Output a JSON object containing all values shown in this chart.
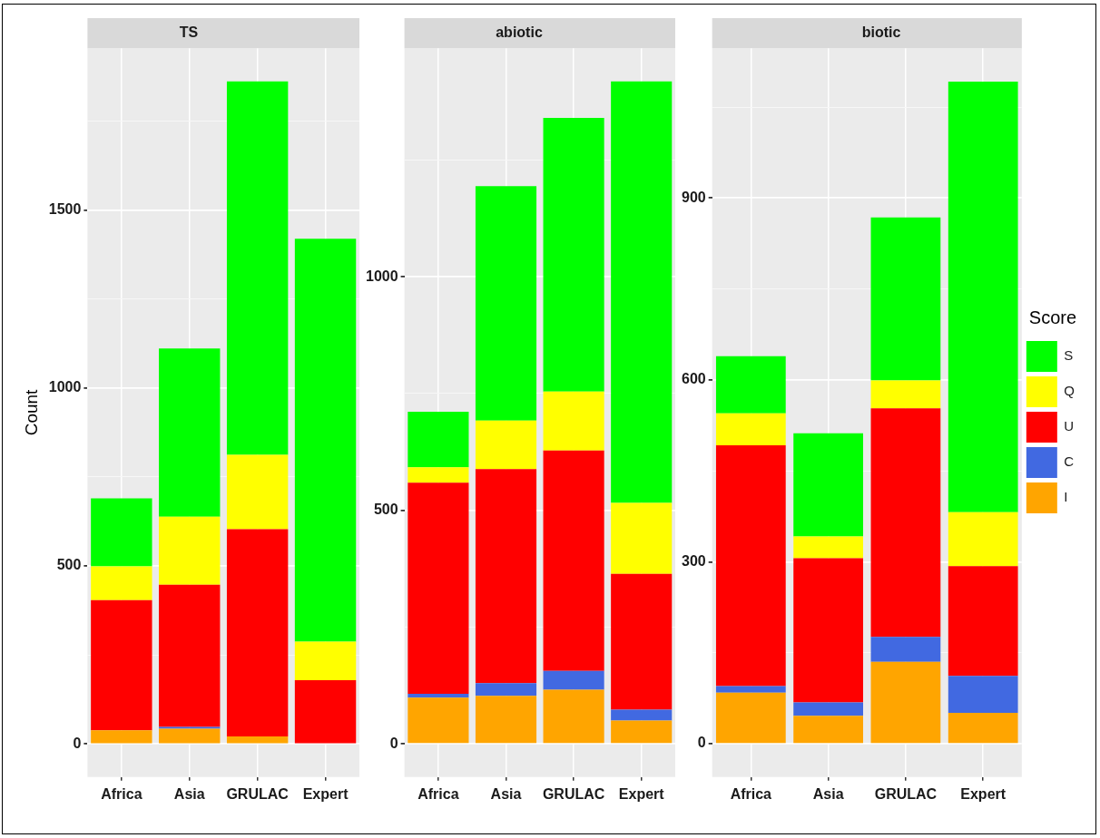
{
  "chart_data": [
    {
      "type": "bar",
      "title": "TS",
      "ylabel": "Count",
      "categories": [
        "Africa",
        "Asia",
        "GRULAC",
        "Expert"
      ],
      "stacked": true,
      "grid": true,
      "legend": false,
      "ylim": [
        -93,
        1954
      ],
      "yticks": [
        0,
        {
          "value": 250,
          "label": null
        },
        500,
        {
          "value": 750,
          "label": null
        },
        1000,
        {
          "value": 1250,
          "label": null
        },
        1500,
        {
          "value": 1750,
          "label": null
        }
      ],
      "series": [
        {
          "color": "#ffa500",
          "values": [
            38,
            43,
            21,
            0
          ]
        },
        {
          "color": "#4169e1",
          "values": [
            0,
            5,
            0,
            0
          ]
        },
        {
          "color": "#ff0000",
          "values": [
            366,
            399,
            582,
            179
          ]
        },
        {
          "color": "#ffff00",
          "values": [
            95,
            191,
            209,
            108
          ]
        },
        {
          "color": "#00ff00",
          "values": [
            191,
            473,
            1049,
            1132
          ]
        }
      ]
    },
    {
      "type": "bar",
      "title": "abiotic",
      "categories": [
        "Africa",
        "Asia",
        "GRULAC",
        "Expert"
      ],
      "stacked": true,
      "grid": true,
      "legend": false,
      "ylim": [
        -71,
        1489
      ],
      "yticks": [
        0,
        {
          "value": 250,
          "label": null
        },
        500,
        {
          "value": 750,
          "label": null
        },
        1000,
        {
          "value": 1250,
          "label": null
        }
      ],
      "series": [
        {
          "color": "#ffa500",
          "values": [
            99,
            103,
            116,
            50
          ]
        },
        {
          "color": "#4169e1",
          "values": [
            8,
            27,
            40,
            23
          ]
        },
        {
          "color": "#ff0000",
          "values": [
            452,
            458,
            472,
            291
          ]
        },
        {
          "color": "#ffff00",
          "values": [
            33,
            104,
            126,
            152
          ]
        },
        {
          "color": "#00ff00",
          "values": [
            119,
            502,
            586,
            902
          ]
        }
      ]
    },
    {
      "type": "bar",
      "title": "biotic",
      "legend_title": "Score",
      "categories": [
        "Africa",
        "Asia",
        "GRULAC",
        "Expert"
      ],
      "stacked": true,
      "grid": true,
      "legend": "right",
      "ylim": [
        -55,
        1147
      ],
      "yticks": [
        0,
        {
          "value": 150,
          "label": null
        },
        300,
        {
          "value": 450,
          "label": null
        },
        600,
        {
          "value": 750,
          "label": null
        },
        900,
        {
          "value": 1050,
          "label": null
        }
      ],
      "series": [
        {
          "name": "I",
          "color": "#ffa500",
          "values": [
            84,
            46,
            135,
            51
          ]
        },
        {
          "name": "C",
          "color": "#4169e1",
          "values": [
            11,
            22,
            41,
            61
          ]
        },
        {
          "name": "U",
          "color": "#ff0000",
          "values": [
            397,
            238,
            377,
            181
          ]
        },
        {
          "name": "Q",
          "color": "#ffff00",
          "values": [
            53,
            36,
            46,
            89
          ]
        },
        {
          "name": "S",
          "color": "#00ff00",
          "values": [
            94,
            170,
            269,
            710
          ]
        }
      ]
    }
  ]
}
